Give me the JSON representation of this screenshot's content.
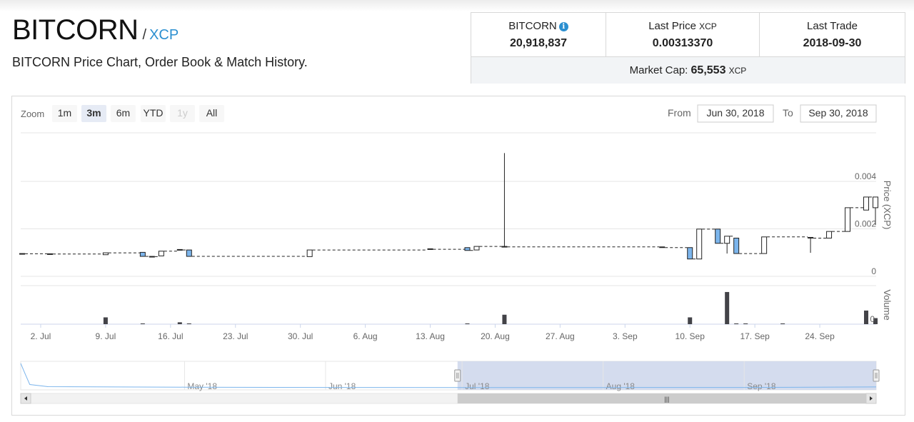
{
  "header": {
    "asset_name": "BITCORN",
    "slash": "/",
    "quote_asset": "XCP",
    "subtitle": "BITCORN Price Chart, Order Book & Match History."
  },
  "stats": {
    "supply_label": "BITCORN",
    "supply_value": "20,918,837",
    "last_price_label": "Last Price",
    "last_price_unit": "XCP",
    "last_price_value": "0.00313370",
    "last_trade_label": "Last Trade",
    "last_trade_value": "2018-09-30",
    "market_cap_label": "Market Cap:",
    "market_cap_value": "65,553",
    "market_cap_unit": "XCP",
    "info_icon": "info-icon"
  },
  "controls": {
    "zoom_label": "Zoom",
    "zoom_buttons": [
      "1m",
      "3m",
      "6m",
      "YTD",
      "1y",
      "All"
    ],
    "active_zoom": "3m",
    "disabled_zoom": "1y",
    "from_label": "From",
    "from_value": "Jun 30, 2018",
    "to_label": "To",
    "to_value": "Sep 30, 2018"
  },
  "colors": {
    "down_candle": "#7cb5ec",
    "up_candle": "#ffffff",
    "volume_bar": "#434348",
    "navigator_mask": "#ccd6eb",
    "navigator_line": "#7cb5ec",
    "selected_zoom_bg": "#e6ebf5"
  },
  "chart_data": {
    "type": "candlestick",
    "x_start": "2018-06-30",
    "x_end": "2018-09-30",
    "x_tick_labels": [
      "2. Jul",
      "9. Jul",
      "16. Jul",
      "23. Jul",
      "30. Jul",
      "6. Aug",
      "13. Aug",
      "20. Aug",
      "27. Aug",
      "3. Sep",
      "10. Sep",
      "17. Sep",
      "24. Sep"
    ],
    "x_tick_dates": [
      "2018-07-02",
      "2018-07-09",
      "2018-07-16",
      "2018-07-23",
      "2018-07-30",
      "2018-08-06",
      "2018-08-13",
      "2018-08-20",
      "2018-08-27",
      "2018-09-03",
      "2018-09-10",
      "2018-09-17",
      "2018-09-24"
    ],
    "price_axis": {
      "label": "Price (XCP)",
      "ticks": [
        "0",
        "0.002",
        "0.004"
      ],
      "tick_values": [
        0,
        0.002,
        0.004
      ],
      "ylim": [
        0,
        0.004
      ]
    },
    "volume_axis": {
      "label": "Volume",
      "ticks": [
        "0"
      ]
    },
    "candles": [
      {
        "date": "2018-06-30",
        "open": 0.00075,
        "high": 0.00075,
        "low": 0.00074,
        "close": 0.00074
      },
      {
        "date": "2018-07-03",
        "open": 0.00074,
        "high": 0.00074,
        "low": 0.00073,
        "close": 0.00073
      },
      {
        "date": "2018-07-09",
        "open": 0.0007,
        "high": 0.00078,
        "low": 0.0007,
        "close": 0.00078
      },
      {
        "date": "2018-07-13",
        "open": 0.0008,
        "high": 0.0008,
        "low": 0.00063,
        "close": 0.00063
      },
      {
        "date": "2018-07-14",
        "open": 0.00063,
        "high": 0.00063,
        "low": 0.00062,
        "close": 0.00062
      },
      {
        "date": "2018-07-15",
        "open": 0.00065,
        "high": 0.00085,
        "low": 0.00065,
        "close": 0.00085
      },
      {
        "date": "2018-07-17",
        "open": 0.00092,
        "high": 0.00092,
        "low": 0.0009,
        "close": 0.0009
      },
      {
        "date": "2018-07-18",
        "open": 0.0009,
        "high": 0.0009,
        "low": 0.00063,
        "close": 0.00063
      },
      {
        "date": "2018-07-31",
        "open": 0.00062,
        "high": 0.0009,
        "low": 0.00062,
        "close": 0.0009
      },
      {
        "date": "2018-08-13",
        "open": 0.00095,
        "high": 0.00095,
        "low": 0.00093,
        "close": 0.00093
      },
      {
        "date": "2018-08-17",
        "open": 0.001,
        "high": 0.001,
        "low": 0.00088,
        "close": 0.00088
      },
      {
        "date": "2018-08-18",
        "open": 0.0009,
        "high": 0.00105,
        "low": 0.0009,
        "close": 0.00105
      },
      {
        "date": "2018-08-21",
        "open": 0.00105,
        "high": 0.00498,
        "low": 0.00103,
        "close": 0.00103
      },
      {
        "date": "2018-09-07",
        "open": 0.00103,
        "high": 0.00103,
        "low": 0.001,
        "close": 0.001
      },
      {
        "date": "2018-09-10",
        "open": 0.001,
        "high": 0.001,
        "low": 0.00052,
        "close": 0.00052
      },
      {
        "date": "2018-09-11",
        "open": 0.00052,
        "high": 0.00178,
        "low": 0.00052,
        "close": 0.00178
      },
      {
        "date": "2018-09-13",
        "open": 0.00178,
        "high": 0.00178,
        "low": 0.00118,
        "close": 0.00118
      },
      {
        "date": "2018-09-14",
        "open": 0.00118,
        "high": 0.00148,
        "low": 0.00075,
        "close": 0.00148
      },
      {
        "date": "2018-09-15",
        "open": 0.0014,
        "high": 0.0014,
        "low": 0.00075,
        "close": 0.00075
      },
      {
        "date": "2018-09-18",
        "open": 0.00075,
        "high": 0.00145,
        "low": 0.00075,
        "close": 0.00145
      },
      {
        "date": "2018-09-23",
        "open": 0.00143,
        "high": 0.00143,
        "low": 0.00078,
        "close": 0.0014
      },
      {
        "date": "2018-09-25",
        "open": 0.0014,
        "high": 0.00168,
        "low": 0.0014,
        "close": 0.00168
      },
      {
        "date": "2018-09-27",
        "open": 0.00168,
        "high": 0.00268,
        "low": 0.00168,
        "close": 0.00268
      },
      {
        "date": "2018-09-29",
        "open": 0.00258,
        "high": 0.00313,
        "low": 0.00258,
        "close": 0.00313
      },
      {
        "date": "2018-09-30",
        "open": 0.00268,
        "high": 0.00313,
        "low": 0.00195,
        "close": 0.00313
      }
    ],
    "volume": [
      {
        "date": "2018-07-09",
        "value": 18
      },
      {
        "date": "2018-07-13",
        "value": 2
      },
      {
        "date": "2018-07-17",
        "value": 5
      },
      {
        "date": "2018-07-18",
        "value": 2
      },
      {
        "date": "2018-08-17",
        "value": 2
      },
      {
        "date": "2018-08-21",
        "value": 25
      },
      {
        "date": "2018-09-10",
        "value": 18
      },
      {
        "date": "2018-09-14",
        "value": 85
      },
      {
        "date": "2018-09-15",
        "value": 2
      },
      {
        "date": "2018-09-16",
        "value": 2
      },
      {
        "date": "2018-09-20",
        "value": 2
      },
      {
        "date": "2018-09-29",
        "value": 36
      },
      {
        "date": "2018-09-30",
        "value": 16
      }
    ],
    "navigator": {
      "labels": [
        "May '18",
        "Jun '18",
        "Jul '18",
        "Aug '18",
        "Sep '18"
      ],
      "label_dates": [
        "2018-05-01",
        "2018-06-01",
        "2018-07-01",
        "2018-08-01",
        "2018-09-01"
      ],
      "range_start": "2018-03-26",
      "range_end": "2018-09-30",
      "selected_from": "2018-06-30",
      "selected_to": "2018-09-30",
      "series": [
        {
          "date": "2018-03-26",
          "value": 0.09
        },
        {
          "date": "2018-03-27",
          "value": 0.05
        },
        {
          "date": "2018-03-28",
          "value": 0.012
        },
        {
          "date": "2018-04-01",
          "value": 0.004
        },
        {
          "date": "2018-05-01",
          "value": 0.002
        },
        {
          "date": "2018-06-01",
          "value": 0.001
        },
        {
          "date": "2018-07-01",
          "value": 0.0008
        },
        {
          "date": "2018-08-01",
          "value": 0.0009
        },
        {
          "date": "2018-09-01",
          "value": 0.001
        },
        {
          "date": "2018-09-30",
          "value": 0.003
        }
      ]
    },
    "scrollbar_grip": "|||"
  }
}
